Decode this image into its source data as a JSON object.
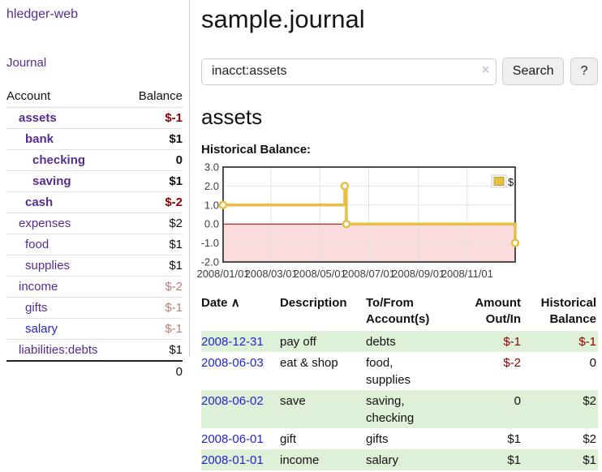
{
  "colors": {
    "purple": "#552d90",
    "blue": "#2424cc",
    "neg": "#8b0000",
    "negSoft": "#b87e7e",
    "stripe": "#dff0d8",
    "clearX": "#cdc2e0",
    "btnBg": "#efefef",
    "btnBorder": "#cfcfcf"
  },
  "sidebar": {
    "app_title": "hledger-web",
    "journal_link": "Journal",
    "accounts_table": {
      "header": {
        "account": "Account",
        "balance": "Balance"
      },
      "rows": [
        {
          "name": "assets",
          "balance": "$-1",
          "level": 0,
          "bold": true,
          "name_color": "purple",
          "balance_color": "neg"
        },
        {
          "name": "bank",
          "balance": "$1",
          "level": 1,
          "bold": true,
          "name_color": "purple",
          "balance_color": "black"
        },
        {
          "name": "checking",
          "balance": "0",
          "level": 2,
          "bold": true,
          "name_color": "purple",
          "balance_color": "black"
        },
        {
          "name": "saving",
          "balance": "$1",
          "level": 2,
          "bold": true,
          "name_color": "purple",
          "balance_color": "black"
        },
        {
          "name": "cash",
          "balance": "$-2",
          "level": 1,
          "bold": true,
          "name_color": "purple",
          "balance_color": "neg"
        },
        {
          "name": "expenses",
          "balance": "$2",
          "level": 0,
          "bold": false,
          "name_color": "purple",
          "balance_color": "black"
        },
        {
          "name": "food",
          "balance": "$1",
          "level": 1,
          "bold": false,
          "name_color": "purple",
          "balance_color": "black"
        },
        {
          "name": "supplies",
          "balance": "$1",
          "level": 1,
          "bold": false,
          "name_color": "purple",
          "balance_color": "black"
        },
        {
          "name": "income",
          "balance": "$-2",
          "level": 0,
          "bold": false,
          "name_color": "purple",
          "balance_color": "negSoft"
        },
        {
          "name": "gifts",
          "balance": "$-1",
          "level": 1,
          "bold": false,
          "name_color": "purple",
          "balance_color": "negSoft"
        },
        {
          "name": "salary",
          "balance": "$-1",
          "level": 1,
          "bold": false,
          "name_color": "blue",
          "balance_color": "negSoft"
        },
        {
          "name": "liabilities:debts",
          "balance": "$1",
          "level": 0,
          "bold": false,
          "name_color": "purple",
          "balance_color": "black",
          "last": true
        }
      ],
      "total": "0"
    }
  },
  "main": {
    "title": "sample.journal",
    "search": {
      "value": "inacct:assets",
      "clear_icon": "×",
      "search_button": "Search",
      "help_button": "?"
    },
    "account_title": "assets",
    "chart_heading": "Historical Balance:"
  },
  "chart_data": {
    "type": "line",
    "title": "Historical Balance",
    "step": true,
    "series": [
      {
        "name": "$",
        "color": "#e8bf45",
        "points": [
          {
            "date": "2008-01-01",
            "day": 0,
            "value": 1
          },
          {
            "date": "2008-06-01",
            "day": 152,
            "value": 2
          },
          {
            "date": "2008-06-03",
            "day": 154,
            "value": 0
          },
          {
            "date": "2008-12-31",
            "day": 365,
            "value": -1
          }
        ]
      }
    ],
    "x_ticks": [
      {
        "label": "2008/01/01",
        "day": 0
      },
      {
        "label": "2008/03/01",
        "day": 60
      },
      {
        "label": "2008/05/01",
        "day": 121
      },
      {
        "label": "2008/07/01",
        "day": 182
      },
      {
        "label": "2008/09/01",
        "day": 244
      },
      {
        "label": "2008/11/01",
        "day": 305
      }
    ],
    "y_ticks": [
      3.0,
      2.0,
      1.0,
      0.0,
      -1.0,
      -2.0
    ],
    "x_range_days": [
      0,
      365
    ],
    "ylim": [
      -2,
      3
    ],
    "grid": true,
    "negative_region_color": "#fadcdc",
    "zero_line_color": "#8b0000",
    "grid_color": "#e3e3e3",
    "border_color": "#4c4c4c",
    "legend": {
      "label": "$",
      "position": "top-right",
      "box_border": "#bf9b2f",
      "frame_border": "#cccccc"
    }
  },
  "register": {
    "headers": {
      "date": "Date",
      "sort_icon": "∧",
      "description": "Description",
      "tofrom_line1": "To/From",
      "tofrom_line2": "Account(s)",
      "amount_line1": "Amount",
      "amount_line2": "Out/In",
      "balance_line1": "Historical",
      "balance_line2": "Balance"
    },
    "rows": [
      {
        "date": "2008-12-31",
        "description": "pay off",
        "accounts": "debts",
        "amount": "$-1",
        "amount_neg": true,
        "balance": "$-1",
        "balance_neg": true
      },
      {
        "date": "2008-06-03",
        "description": "eat & shop",
        "accounts": "food, supplies",
        "amount": "$-2",
        "amount_neg": true,
        "balance": "0",
        "balance_neg": false
      },
      {
        "date": "2008-06-02",
        "description": "save",
        "accounts": "saving, checking",
        "amount": "0",
        "amount_neg": false,
        "balance": "$2",
        "balance_neg": false
      },
      {
        "date": "2008-06-01",
        "description": "gift",
        "accounts": "gifts",
        "amount": "$1",
        "amount_neg": false,
        "balance": "$2",
        "balance_neg": false
      },
      {
        "date": "2008-01-01",
        "description": "income",
        "accounts": "salary",
        "amount": "$1",
        "amount_neg": false,
        "balance": "$1",
        "balance_neg": false
      }
    ]
  }
}
